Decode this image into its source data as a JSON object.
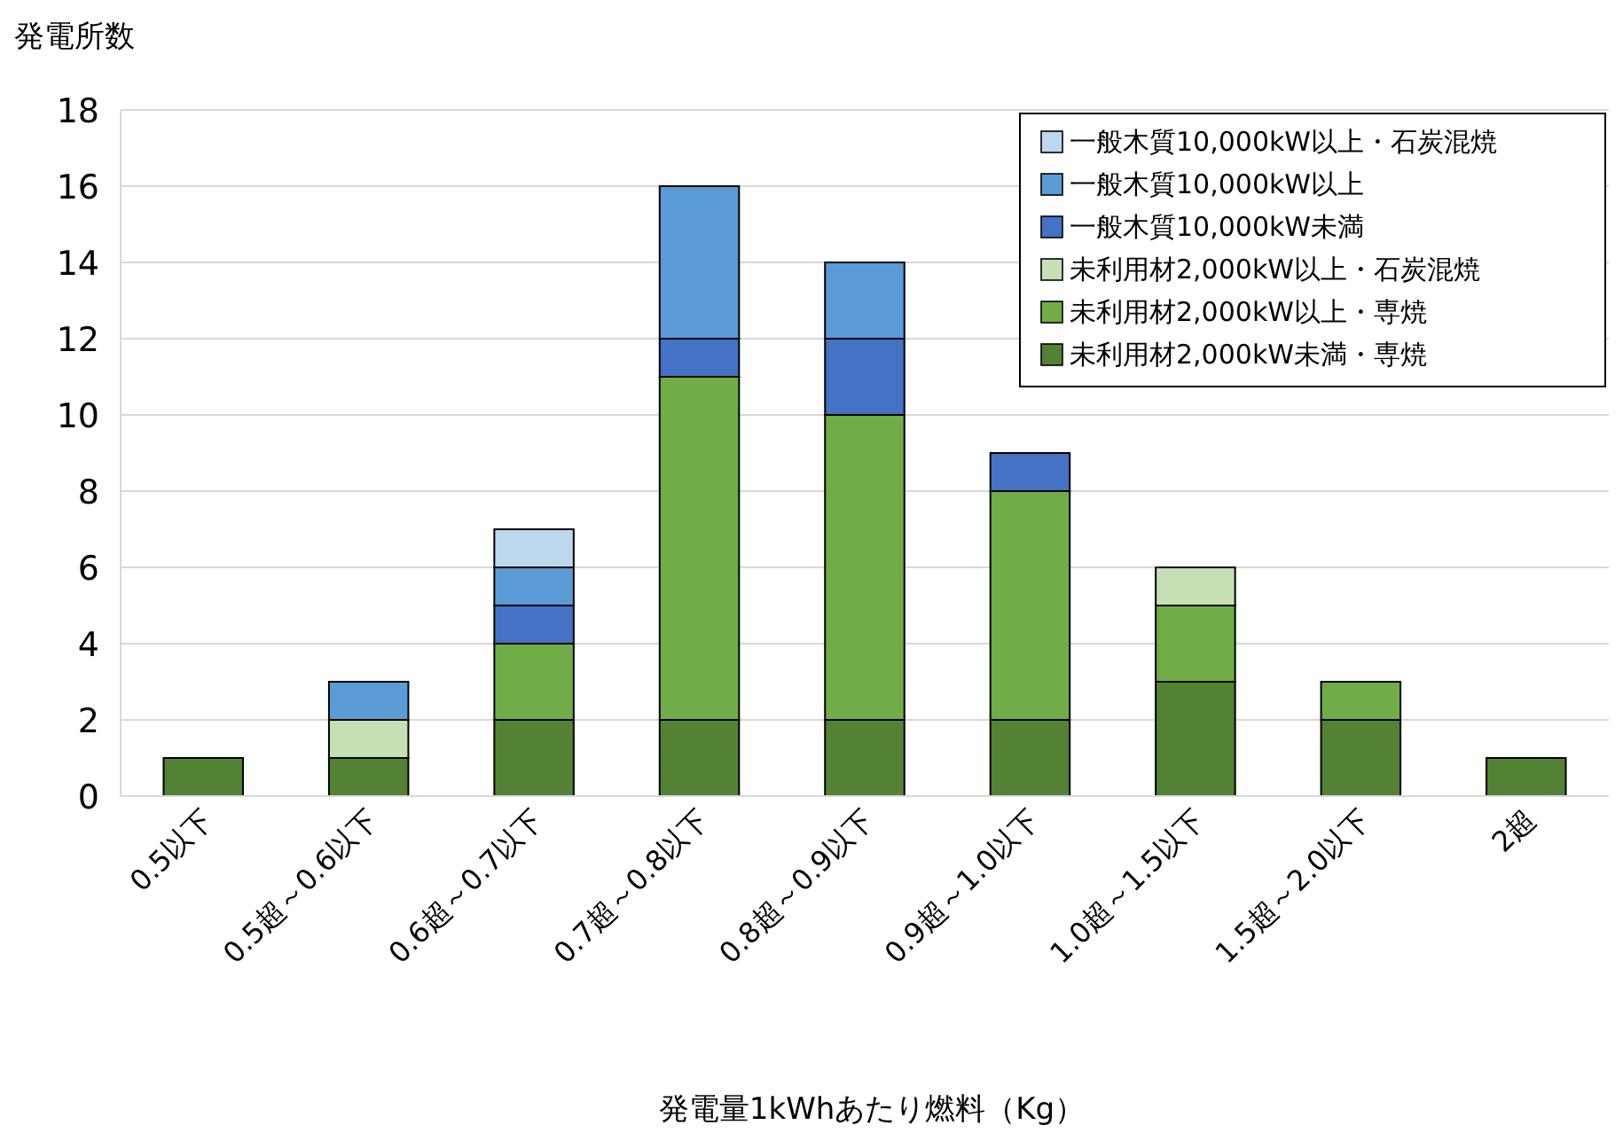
{
  "chart_data": {
    "type": "bar",
    "stacked": true,
    "xlabel": "発電量1kWhあたり燃料（Kg）",
    "ylabel": "発電所数",
    "categories": [
      "0.5以下",
      "0.5超～0.6以下",
      "0.6超～0.7以下",
      "0.7超～0.8以下",
      "0.8超～0.9以下",
      "0.9超～1.0以下",
      "1.0超～1.5以下",
      "1.5超～2.0以下",
      "2超"
    ],
    "series": [
      {
        "name": "未利用材2,000kW未満・専焼",
        "color": "#548235",
        "values": [
          1,
          1,
          2,
          2,
          2,
          2,
          3,
          2,
          1
        ]
      },
      {
        "name": "未利用材2,000kW以上・専焼",
        "color": "#70ad47",
        "values": [
          null,
          null,
          2,
          9,
          8,
          6,
          2,
          1,
          null
        ]
      },
      {
        "name": "未利用材2,000kW以上・石炭混焼",
        "color": "#c5e0b4",
        "values": [
          null,
          1,
          null,
          null,
          null,
          null,
          1,
          null,
          null
        ]
      },
      {
        "name": "一般木質10,000kW未満",
        "color": "#4472c4",
        "values": [
          null,
          null,
          1,
          1,
          2,
          1,
          null,
          null,
          null
        ]
      },
      {
        "name": "一般木質10,000kW以上",
        "color": "#5b9bd5",
        "values": [
          null,
          1,
          1,
          4,
          2,
          null,
          null,
          null,
          null
        ]
      },
      {
        "name": "一般木質10,000kW以上・石炭混焼",
        "color": "#bdd7ee",
        "values": [
          null,
          null,
          1,
          null,
          null,
          null,
          null,
          null,
          null
        ]
      }
    ],
    "ylim": [
      0,
      18
    ],
    "yticks": [
      0,
      2,
      4,
      6,
      8,
      10,
      12,
      14,
      16,
      18
    ],
    "grid": "y",
    "legend": "top right"
  }
}
